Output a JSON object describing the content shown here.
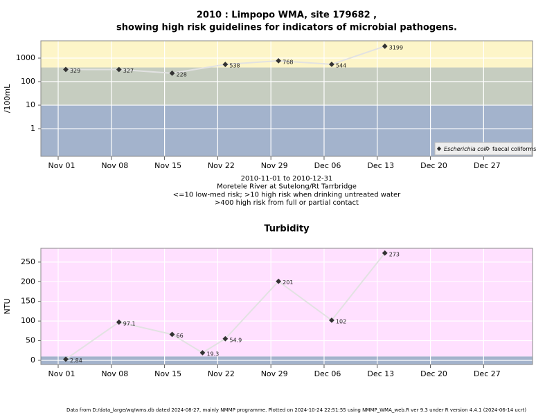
{
  "chart_data": [
    {
      "type": "line",
      "title": [
        "2010 : Limpopo WMA, site 179682 ,",
        "showing high risk guidelines for indicators of microbial pathogens."
      ],
      "y_label": "/100mL",
      "x": [
        "2010-11-02",
        "2010-11-09",
        "2010-11-16",
        "2010-11-23",
        "2010-11-30",
        "2010-12-07",
        "2010-12-14"
      ],
      "series": [
        {
          "name": "Escherichia coli",
          "color": "#333333",
          "marker": "filled",
          "values": [
            329,
            327,
            228,
            538,
            768,
            544,
            3199
          ]
        },
        {
          "name": "faecal coliforms",
          "color": "#333333",
          "marker": "open",
          "values": [
            null,
            null,
            null,
            null,
            null,
            null,
            null
          ]
        }
      ],
      "line_color": "#e2e2e2",
      "log_scale": true,
      "ylim": [
        0.067,
        5430
      ],
      "yticks": [
        1,
        10,
        100,
        1000
      ],
      "xlim": [
        "2010-10-29T17:17Z",
        "2011-01-02T10:33Z"
      ],
      "xticks": [
        {
          "value": "2010-11-01",
          "label": "Nov 01"
        },
        {
          "value": "2010-11-08",
          "label": "Nov 08"
        },
        {
          "value": "2010-11-15",
          "label": "Nov 15"
        },
        {
          "value": "2010-11-22",
          "label": "Nov 22"
        },
        {
          "value": "2010-11-29",
          "label": "Nov 29"
        },
        {
          "value": "2010-12-06",
          "label": "Dec 06"
        },
        {
          "value": "2010-12-13",
          "label": "Dec 13"
        },
        {
          "value": "2010-12-20",
          "label": "Dec 20"
        },
        {
          "value": "2010-12-27",
          "label": "Dec 27"
        }
      ],
      "band_limits": [
        10,
        400
      ],
      "band_colors": [
        "#a3b3cc",
        "#c6cdc0",
        "#fdf5c8"
      ],
      "grid": true,
      "legend": "bottom-right",
      "notes": [
        "2010-11-01 to 2010-12-31",
        "Moretele River at Sutelong/Rt Tarrbridge",
        "<=10 low-med risk; >10 high risk when drinking untreated water",
        ">400 high risk from full or partial contact"
      ]
    },
    {
      "type": "line",
      "title": [
        "Turbidity"
      ],
      "y_label": "NTU",
      "x": [
        "2010-11-02",
        "2010-11-09",
        "2010-11-16",
        "2010-11-20",
        "2010-11-23",
        "2010-11-30",
        "2010-12-07",
        "2010-12-14"
      ],
      "values": [
        2.84,
        97.1,
        66,
        19.3,
        54.9,
        201,
        102,
        273
      ],
      "color": "#333333",
      "line_color": "#e2e2e2",
      "ylim": [
        -10.6,
        285
      ],
      "yticks": [
        0,
        50,
        100,
        150,
        200,
        250
      ],
      "xlim": [
        "2010-10-29T17:17Z",
        "2011-01-02T10:33Z"
      ],
      "xticks": [
        {
          "value": "2010-11-01",
          "label": "Nov 01"
        },
        {
          "value": "2010-11-08",
          "label": "Nov 08"
        },
        {
          "value": "2010-11-15",
          "label": "Nov 15"
        },
        {
          "value": "2010-11-22",
          "label": "Nov 22"
        },
        {
          "value": "2010-11-29",
          "label": "Nov 29"
        },
        {
          "value": "2010-12-06",
          "label": "Dec 06"
        },
        {
          "value": "2010-12-13",
          "label": "Dec 13"
        },
        {
          "value": "2010-12-20",
          "label": "Dec 20"
        },
        {
          "value": "2010-12-27",
          "label": "Dec 27"
        }
      ],
      "band_limits": [
        10
      ],
      "band_colors": [
        "#a3b3cc",
        "#ffe0ff"
      ],
      "grid": true
    }
  ],
  "footer": "Data from D:/data_large/wq/wms.db dated 2024-08-27, mainly NMMP programme. Plotted on 2024-10-24 22:51:55 using NMMP_WMA_web.R ver 9.3 under R version 4.4.1 (2024-06-14 ucrt)"
}
